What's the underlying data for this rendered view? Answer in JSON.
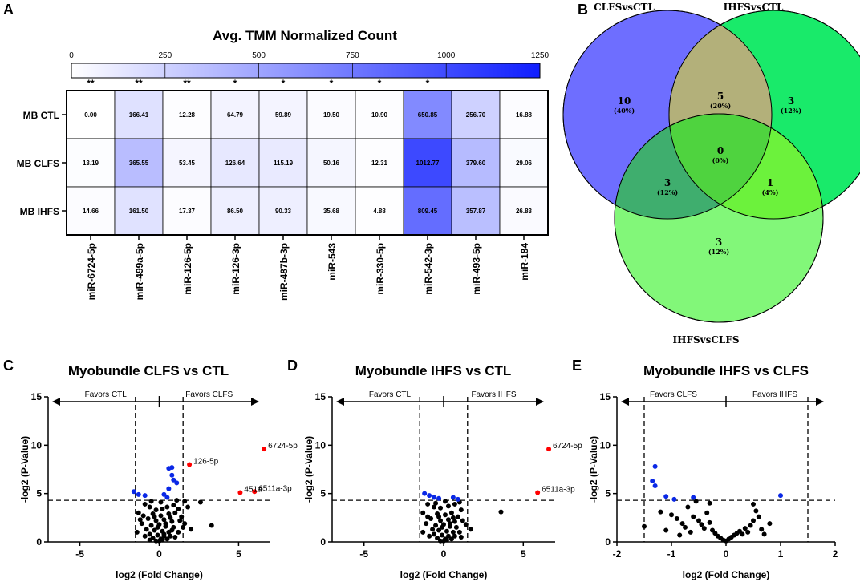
{
  "panels": {
    "A": "A",
    "B": "B",
    "C": "C",
    "D": "D",
    "E": "E"
  },
  "colors": {
    "sig_up": "#ff0000",
    "sig_down": "#0a28e6",
    "ns": "#000000",
    "heat_low": "#ffffff",
    "heat_high": "#0f1eff",
    "venn_clfs": "#6e6eff",
    "venn_ihfs": "#33ee66",
    "venn_ihfs_clfs": "#7ef07a"
  },
  "chart_data": [
    {
      "type": "heatmap",
      "title": "Avg. TMM Normalized Count",
      "colorbar_ticks": [
        "0",
        "250",
        "500",
        "750",
        "1000",
        "1250"
      ],
      "vmin": 0,
      "vmax": 1250,
      "rows": [
        "MB CTL",
        "MB CLFS",
        "MB IHFS"
      ],
      "columns": [
        "miR-6724-5p",
        "miR-499a-5p",
        "miR-126-5p",
        "miR-126-3p",
        "miR-487b-3p",
        "miR-543",
        "miR-330-5p",
        "miR-542-3p",
        "miR-493-5p",
        "miR-184"
      ],
      "significance": [
        "**",
        "**",
        "**",
        "*",
        "*",
        "*",
        "*",
        "*",
        "",
        ""
      ],
      "values": [
        [
          "0.00",
          "166.41",
          "12.28",
          "64.79",
          "59.89",
          "19.50",
          "10.90",
          "650.85",
          "256.70",
          "16.88"
        ],
        [
          "13.19",
          "365.55",
          "53.45",
          "126.64",
          "115.19",
          "50.16",
          "12.31",
          "1012.77",
          "379.60",
          "29.06"
        ],
        [
          "14.66",
          "161.50",
          "17.37",
          "86.50",
          "90.33",
          "35.68",
          "4.88",
          "809.45",
          "357.87",
          "26.83"
        ]
      ]
    },
    {
      "type": "venn",
      "sets": [
        {
          "name": "CLFSvsCTL",
          "color": "#1f1fd6"
        },
        {
          "name": "IHFSvsCTL",
          "color": "#7a7a1f"
        },
        {
          "name": "IHFSvsCLFS",
          "color": "#1d7a1d"
        }
      ],
      "regions": [
        {
          "id": "clfs_only",
          "count": "10",
          "pct": "(40%)"
        },
        {
          "id": "clfs_ihfs_ctl",
          "count": "5",
          "pct": "(20%)"
        },
        {
          "id": "ihfs_ctl_only",
          "count": "3",
          "pct": "(12%)"
        },
        {
          "id": "all",
          "count": "0",
          "pct": "(0%)"
        },
        {
          "id": "clfs_ihfsclfs",
          "count": "3",
          "pct": "(12%)"
        },
        {
          "id": "ihfsctl_ihfsclfs",
          "count": "1",
          "pct": "(4%)"
        },
        {
          "id": "ihfsclfs_only",
          "count": "3",
          "pct": "(12%)"
        }
      ]
    },
    {
      "type": "scatter",
      "title": "Myobundle CLFS vs CTL",
      "xlabel": "log2 (Fold Change)",
      "ylabel": "-log2 (P-Value)",
      "xlim": [
        -7,
        7
      ],
      "ylim": [
        0,
        15
      ],
      "xticks": [
        "-5",
        "0",
        "5"
      ],
      "xtick_vals": [
        -5,
        0,
        5
      ],
      "yticks": [
        "0",
        "5",
        "10",
        "15"
      ],
      "ytick_vals": [
        0,
        5,
        10,
        15
      ],
      "vlines": [
        -1.5,
        1.5
      ],
      "hline": 4.3,
      "favors_left": "Favors CTL",
      "favors_right": "Favors CLFS",
      "points_up": [
        [
          6.6,
          9.6
        ],
        [
          1.9,
          8.0
        ],
        [
          5.1,
          5.1
        ],
        [
          6.0,
          5.2
        ]
      ],
      "points_down": [
        [
          0.6,
          7.6
        ],
        [
          0.8,
          7.7
        ],
        [
          0.8,
          6.9
        ],
        [
          0.9,
          6.4
        ],
        [
          1.1,
          6.1
        ],
        [
          0.6,
          5.5
        ],
        [
          -1.6,
          5.2
        ],
        [
          -1.3,
          4.9
        ],
        [
          -0.9,
          4.8
        ],
        [
          0.3,
          4.9
        ],
        [
          0.5,
          4.6
        ]
      ],
      "labels": [
        {
          "text": "6724-5p",
          "x": 6.6,
          "y": 9.6
        },
        {
          "text": "126-5p",
          "x": 1.9,
          "y": 8.0
        },
        {
          "text": "451a",
          "x": 5.1,
          "y": 5.1
        },
        {
          "text": "6511a-3p",
          "x": 6.0,
          "y": 5.2
        }
      ],
      "ns_points": [
        [
          -0.9,
          3.9
        ],
        [
          -0.6,
          3.6
        ],
        [
          -0.2,
          3.3
        ],
        [
          0.2,
          3.4
        ],
        [
          0.5,
          3.6
        ],
        [
          0.9,
          3.8
        ],
        [
          1.2,
          3.4
        ],
        [
          1.8,
          3.6
        ],
        [
          2.6,
          4.1
        ],
        [
          -1.3,
          3.0
        ],
        [
          -0.4,
          2.9
        ],
        [
          0.1,
          2.7
        ],
        [
          0.6,
          2.9
        ],
        [
          1.0,
          3.0
        ],
        [
          1.4,
          2.6
        ],
        [
          -0.7,
          2.4
        ],
        [
          -0.2,
          2.2
        ],
        [
          0.3,
          2.3
        ],
        [
          0.8,
          2.1
        ],
        [
          1.3,
          2.2
        ],
        [
          1.6,
          1.9
        ],
        [
          -1.1,
          1.9
        ],
        [
          -0.5,
          1.7
        ],
        [
          0.0,
          1.8
        ],
        [
          0.4,
          1.6
        ],
        [
          0.9,
          1.5
        ],
        [
          -0.8,
          1.3
        ],
        [
          -0.3,
          1.2
        ],
        [
          0.2,
          1.1
        ],
        [
          0.6,
          1.0
        ],
        [
          1.2,
          1.0
        ],
        [
          -1.4,
          1.0
        ],
        [
          -0.6,
          0.8
        ],
        [
          -0.1,
          0.7
        ],
        [
          0.3,
          0.6
        ],
        [
          0.7,
          0.6
        ],
        [
          -0.4,
          0.4
        ],
        [
          0.1,
          0.3
        ],
        [
          0.5,
          0.3
        ],
        [
          -0.2,
          0.1
        ],
        [
          0.0,
          0.1
        ],
        [
          0.2,
          0.2
        ],
        [
          -0.9,
          0.6
        ],
        [
          1.0,
          0.5
        ],
        [
          2.0,
          1.3
        ],
        [
          3.3,
          1.7
        ],
        [
          -0.3,
          2.6
        ],
        [
          0.7,
          2.5
        ],
        [
          1.1,
          4.3
        ],
        [
          0.1,
          4.1
        ],
        [
          -0.5,
          4.2
        ],
        [
          1.6,
          4.2
        ],
        [
          -1.0,
          2.7
        ],
        [
          0.4,
          1.9
        ],
        [
          -0.1,
          1.5
        ],
        [
          0.8,
          1.2
        ],
        [
          -0.6,
          0.2
        ],
        [
          0.3,
          0.8
        ],
        [
          1.5,
          1.5
        ],
        [
          -1.2,
          2.3
        ]
      ]
    },
    {
      "type": "scatter",
      "title": "Myobundle IHFS vs CTL",
      "xlabel": "log2 (Fold Change)",
      "ylabel": "-log2 (P-Value)",
      "xlim": [
        -7,
        7
      ],
      "ylim": [
        0,
        15
      ],
      "xticks": [
        "-5",
        "0",
        "5"
      ],
      "xtick_vals": [
        -5,
        0,
        5
      ],
      "yticks": [
        "0",
        "5",
        "10",
        "15"
      ],
      "ytick_vals": [
        0,
        5,
        10,
        15
      ],
      "vlines": [
        -1.5,
        1.5
      ],
      "hline": 4.3,
      "favors_left": "Favors CTL",
      "favors_right": "Favors IHFS",
      "points_up": [
        [
          6.6,
          9.6
        ],
        [
          5.9,
          5.1
        ]
      ],
      "points_down": [
        [
          -1.2,
          5.0
        ],
        [
          -0.9,
          4.8
        ],
        [
          -0.6,
          4.6
        ],
        [
          -0.3,
          4.5
        ],
        [
          0.6,
          4.6
        ],
        [
          0.9,
          4.4
        ]
      ],
      "labels": [
        {
          "text": "6724-5p",
          "x": 6.6,
          "y": 9.6
        },
        {
          "text": "6511a-3p",
          "x": 5.9,
          "y": 5.1
        }
      ],
      "ns_points": [
        [
          -1.0,
          3.9
        ],
        [
          -0.6,
          3.6
        ],
        [
          -0.2,
          3.5
        ],
        [
          0.3,
          3.7
        ],
        [
          0.7,
          3.9
        ],
        [
          1.1,
          3.3
        ],
        [
          -1.3,
          3.0
        ],
        [
          -0.4,
          2.9
        ],
        [
          0.1,
          2.8
        ],
        [
          0.5,
          3.0
        ],
        [
          0.9,
          2.6
        ],
        [
          -0.8,
          2.4
        ],
        [
          -0.2,
          2.2
        ],
        [
          0.3,
          2.3
        ],
        [
          0.7,
          2.1
        ],
        [
          1.2,
          2.2
        ],
        [
          -1.1,
          1.9
        ],
        [
          -0.5,
          1.7
        ],
        [
          0.0,
          1.8
        ],
        [
          0.4,
          1.6
        ],
        [
          0.8,
          1.5
        ],
        [
          -0.7,
          1.3
        ],
        [
          -0.3,
          1.2
        ],
        [
          0.2,
          1.1
        ],
        [
          0.6,
          1.0
        ],
        [
          1.0,
          1.0
        ],
        [
          -1.3,
          1.0
        ],
        [
          -0.6,
          0.8
        ],
        [
          -0.1,
          0.7
        ],
        [
          0.3,
          0.6
        ],
        [
          0.7,
          0.6
        ],
        [
          -0.4,
          0.4
        ],
        [
          0.1,
          0.3
        ],
        [
          0.5,
          0.3
        ],
        [
          -0.2,
          0.1
        ],
        [
          0.0,
          0.1
        ],
        [
          0.2,
          0.2
        ],
        [
          -0.9,
          0.6
        ],
        [
          1.1,
          0.5
        ],
        [
          1.7,
          1.3
        ],
        [
          3.6,
          3.1
        ],
        [
          -0.3,
          2.6
        ],
        [
          0.6,
          2.5
        ],
        [
          1.0,
          4.1
        ],
        [
          0.1,
          4.2
        ],
        [
          -0.5,
          4.0
        ],
        [
          1.4,
          1.8
        ],
        [
          -1.0,
          2.6
        ],
        [
          0.4,
          1.9
        ],
        [
          -0.1,
          1.5
        ]
      ]
    },
    {
      "type": "scatter",
      "title": "Myobundle IHFS vs CLFS",
      "xlabel": "log2 (Fold Change)",
      "ylabel": "-log2 (P-Value)",
      "xlim": [
        -2,
        2
      ],
      "ylim": [
        0,
        15
      ],
      "xticks": [
        "-2",
        "-1",
        "0",
        "1",
        "2"
      ],
      "xtick_vals": [
        -2,
        -1,
        0,
        1,
        2
      ],
      "yticks": [
        "0",
        "5",
        "10",
        "15"
      ],
      "ytick_vals": [
        0,
        5,
        10,
        15
      ],
      "vlines": [
        -1.5,
        1.5
      ],
      "hline": 4.3,
      "favors_left": "Favors CLFS",
      "favors_right": "Favors IHFS",
      "points_up": [],
      "points_down": [
        [
          -1.3,
          7.8
        ],
        [
          -1.35,
          6.3
        ],
        [
          -1.3,
          5.8
        ],
        [
          -1.1,
          4.7
        ],
        [
          -0.95,
          4.4
        ],
        [
          -0.6,
          4.6
        ],
        [
          1.0,
          4.8
        ]
      ],
      "labels": [],
      "ns_points": [
        [
          -1.5,
          1.6
        ],
        [
          -1.2,
          3.1
        ],
        [
          -1.0,
          2.8
        ],
        [
          -0.9,
          2.4
        ],
        [
          -0.8,
          1.9
        ],
        [
          -0.7,
          3.6
        ],
        [
          -0.6,
          2.6
        ],
        [
          -0.5,
          2.2
        ],
        [
          -0.45,
          1.8
        ],
        [
          -0.4,
          1.4
        ],
        [
          -0.35,
          3.0
        ],
        [
          -0.3,
          2.0
        ],
        [
          -0.25,
          1.2
        ],
        [
          -0.2,
          0.9
        ],
        [
          -0.15,
          0.6
        ],
        [
          -0.1,
          0.4
        ],
        [
          -0.05,
          0.2
        ],
        [
          0.0,
          0.1
        ],
        [
          0.05,
          0.3
        ],
        [
          0.1,
          0.5
        ],
        [
          0.15,
          0.7
        ],
        [
          0.2,
          0.9
        ],
        [
          0.25,
          1.1
        ],
        [
          0.3,
          0.8
        ],
        [
          0.35,
          1.4
        ],
        [
          0.4,
          1.0
        ],
        [
          0.45,
          1.7
        ],
        [
          0.5,
          2.2
        ],
        [
          0.55,
          3.2
        ],
        [
          0.6,
          2.6
        ],
        [
          0.65,
          1.3
        ],
        [
          0.7,
          0.8
        ],
        [
          -0.55,
          4.2
        ],
        [
          -0.65,
          1.0
        ],
        [
          -0.75,
          1.5
        ],
        [
          -0.85,
          0.7
        ],
        [
          0.8,
          1.9
        ],
        [
          0.5,
          3.9
        ],
        [
          -0.3,
          4.0
        ],
        [
          -1.1,
          1.2
        ]
      ]
    }
  ]
}
